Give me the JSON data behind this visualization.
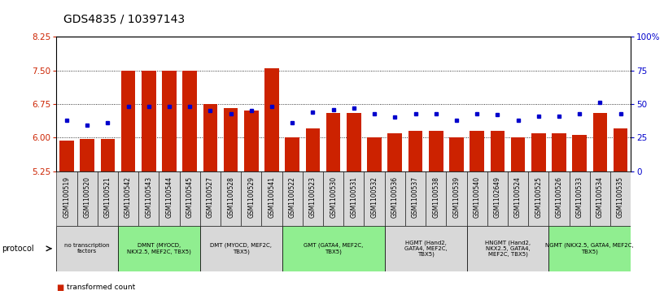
{
  "title": "GDS4835 / 10397143",
  "samples": [
    "GSM1100519",
    "GSM1100520",
    "GSM1100521",
    "GSM1100542",
    "GSM1100543",
    "GSM1100544",
    "GSM1100545",
    "GSM1100527",
    "GSM1100528",
    "GSM1100529",
    "GSM1100541",
    "GSM1100522",
    "GSM1100523",
    "GSM1100530",
    "GSM1100531",
    "GSM1100532",
    "GSM1100536",
    "GSM1100537",
    "GSM1100538",
    "GSM1100539",
    "GSM1100540",
    "GSM1102649",
    "GSM1100524",
    "GSM1100525",
    "GSM1100526",
    "GSM1100533",
    "GSM1100534",
    "GSM1100535"
  ],
  "bar_values": [
    5.93,
    5.97,
    5.97,
    7.5,
    7.5,
    7.5,
    7.5,
    6.75,
    6.65,
    6.6,
    7.55,
    6.0,
    6.2,
    6.55,
    6.55,
    6.0,
    6.1,
    6.15,
    6.15,
    6.0,
    6.15,
    6.15,
    6.0,
    6.1,
    6.1,
    6.05,
    6.55,
    6.2
  ],
  "percentile_values": [
    38,
    34,
    36,
    48,
    48,
    48,
    48,
    45,
    43,
    45,
    48,
    36,
    44,
    46,
    47,
    43,
    40,
    43,
    43,
    38,
    43,
    42,
    38,
    41,
    41,
    43,
    51,
    43
  ],
  "ylim_left": [
    5.25,
    8.25
  ],
  "ylim_right": [
    0,
    100
  ],
  "yticks_left": [
    5.25,
    6.0,
    6.75,
    7.5,
    8.25
  ],
  "yticks_right": [
    0,
    25,
    50,
    75,
    100
  ],
  "protocols": [
    {
      "label": "no transcription\nfactors",
      "start": 0,
      "end": 3,
      "color": "#d8d8d8"
    },
    {
      "label": "DMNT (MYOCD,\nNKX2.5, MEF2C, TBX5)",
      "start": 3,
      "end": 7,
      "color": "#90ee90"
    },
    {
      "label": "DMT (MYOCD, MEF2C,\nTBX5)",
      "start": 7,
      "end": 11,
      "color": "#d8d8d8"
    },
    {
      "label": "GMT (GATA4, MEF2C,\nTBX5)",
      "start": 11,
      "end": 16,
      "color": "#90ee90"
    },
    {
      "label": "HGMT (Hand2,\nGATA4, MEF2C,\nTBX5)",
      "start": 16,
      "end": 20,
      "color": "#d8d8d8"
    },
    {
      "label": "HNGMT (Hand2,\nNKX2.5, GATA4,\nMEF2C, TBX5)",
      "start": 20,
      "end": 24,
      "color": "#d8d8d8"
    },
    {
      "label": "NGMT (NKX2.5, GATA4, MEF2C,\nTBX5)",
      "start": 24,
      "end": 28,
      "color": "#90ee90"
    }
  ],
  "bar_color": "#cc2200",
  "marker_color": "#0000cc",
  "title_fontsize": 10,
  "axis_label_color_left": "#cc2200",
  "axis_label_color_right": "#0000cc"
}
